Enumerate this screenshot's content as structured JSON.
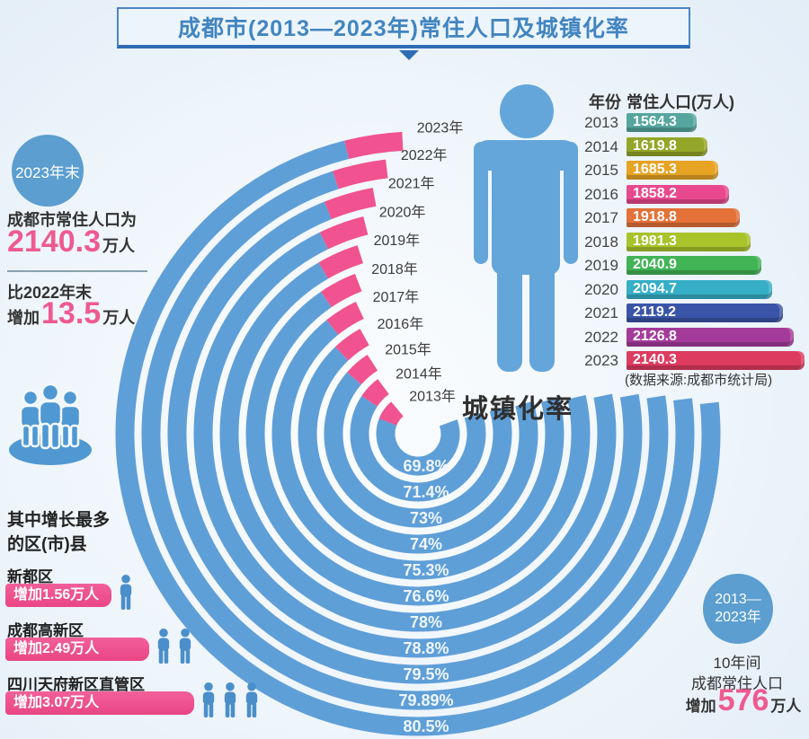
{
  "title": "成都市(2013—2023年)常住人口及城镇化率",
  "left_panel": {
    "badge": "2023年末",
    "line1": "成都市常住人口为",
    "pop_value": "2140.3",
    "pop_unit": "万人",
    "line2": "比2022年末",
    "inc_prefix": "增加",
    "inc_value": "13.5",
    "inc_unit": "万人"
  },
  "districts": {
    "heading_line1": "其中增长最多",
    "heading_line2": "的区(市)县",
    "items": [
      {
        "name": "新都区",
        "label": "增加1.56万人",
        "icons": 1
      },
      {
        "name": "成都高新区",
        "label": "增加2.49万人",
        "icons": 2
      },
      {
        "name": "四川天府新区直管区",
        "label": "增加3.07万人",
        "icons": 3
      }
    ]
  },
  "summary": {
    "badge_line1": "2013—",
    "badge_line2": "2023年",
    "line1": "10年间",
    "line2": "成都常住人口",
    "inc_prefix": "增加",
    "inc_value": "576",
    "inc_unit": "万人"
  },
  "table": {
    "header_year": "年份",
    "header_pop": "常住人口(万人)",
    "source": "(数据来源:成都市统计局)",
    "rows": [
      {
        "year": "2013",
        "value": "1564.3",
        "color": "#55a69f"
      },
      {
        "year": "2014",
        "value": "1619.8",
        "color": "#93a627"
      },
      {
        "year": "2015",
        "value": "1685.3",
        "color": "#e6a324"
      },
      {
        "year": "2016",
        "value": "1858.2",
        "color": "#e8498e"
      },
      {
        "year": "2017",
        "value": "1918.8",
        "color": "#e37138"
      },
      {
        "year": "2018",
        "value": "1981.3",
        "color": "#a9c32b"
      },
      {
        "year": "2019",
        "value": "2040.9",
        "color": "#41b456"
      },
      {
        "year": "2020",
        "value": "2094.7",
        "color": "#35aec6"
      },
      {
        "year": "2021",
        "value": "2119.2",
        "color": "#3a55a8"
      },
      {
        "year": "2022",
        "value": "2126.8",
        "color": "#a43a9a"
      },
      {
        "year": "2023",
        "value": "2140.3",
        "color": "#dd3b60"
      }
    ]
  },
  "chart_data": {
    "type": "radial-bar",
    "title": "城镇化率",
    "categories": [
      "2013",
      "2014",
      "2015",
      "2016",
      "2017",
      "2018",
      "2019",
      "2020",
      "2021",
      "2022",
      "2023"
    ],
    "year_labels": [
      "2013年",
      "2014年",
      "2015年",
      "2016年",
      "2017年",
      "2018年",
      "2019年",
      "2020年",
      "2021年",
      "2022年",
      "2023年"
    ],
    "series": [
      {
        "name": "城镇化率(%)",
        "values": [
          69.8,
          71.4,
          73,
          74,
          75.3,
          76.6,
          78,
          78.8,
          79.5,
          79.89,
          80.5
        ],
        "labels": [
          "69.8%",
          "71.4%",
          "73%",
          "74%",
          "75.3%",
          "76.6%",
          "78%",
          "78.8%",
          "79.5%",
          "79.89%",
          "80.5%"
        ]
      },
      {
        "name": "常住人口(万人)",
        "values": [
          1564.3,
          1619.8,
          1685.3,
          1858.2,
          1918.8,
          1981.3,
          2040.9,
          2094.7,
          2119.2,
          2126.8,
          2140.3
        ]
      }
    ],
    "colors": {
      "ring": "#5f9fd8",
      "tip": "#f0538f"
    },
    "legend_position": "none",
    "grid": false
  }
}
